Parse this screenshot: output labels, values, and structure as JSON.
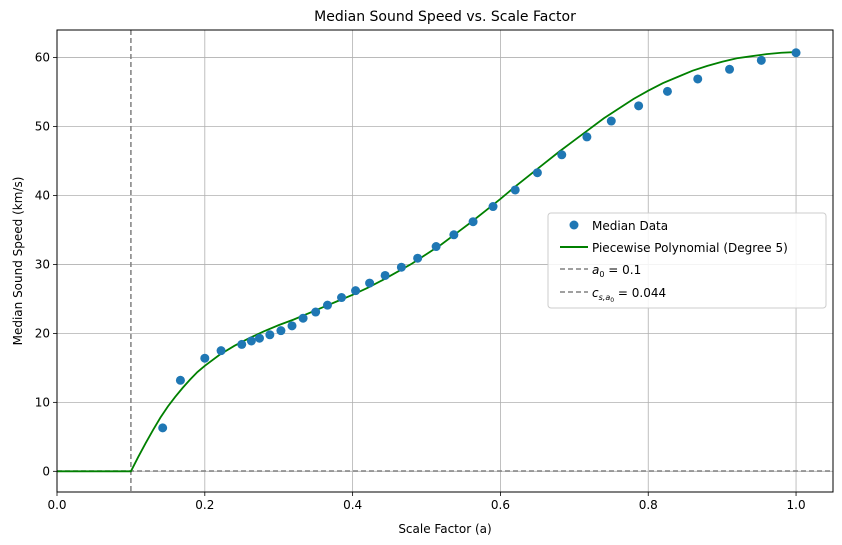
{
  "chart_data": {
    "type": "scatter",
    "title": "Median Sound Speed vs. Scale Factor",
    "xlabel": "Scale Factor (a)",
    "ylabel": "Median Sound Speed (km/s)",
    "xlim": [
      0.0,
      1.05
    ],
    "ylim": [
      -3.0,
      64.0
    ],
    "grid": true,
    "legend_position": "center-right",
    "x_ticks": [
      0.0,
      0.2,
      0.4,
      0.6,
      0.8,
      1.0
    ],
    "x_tick_labels": [
      "0.0",
      "0.2",
      "0.4",
      "0.6",
      "0.8",
      "1.0"
    ],
    "y_ticks": [
      0,
      10,
      20,
      30,
      40,
      50,
      60
    ],
    "y_tick_labels": [
      "0",
      "10",
      "20",
      "30",
      "40",
      "50",
      "60"
    ],
    "series": [
      {
        "name": "Median Data",
        "kind": "scatter",
        "color": "#1f77b4",
        "x": [
          0.143,
          0.167,
          0.2,
          0.222,
          0.25,
          0.263,
          0.274,
          0.288,
          0.303,
          0.318,
          0.333,
          0.35,
          0.366,
          0.385,
          0.404,
          0.423,
          0.444,
          0.466,
          0.488,
          0.513,
          0.537,
          0.563,
          0.59,
          0.62,
          0.65,
          0.683,
          0.717,
          0.75,
          0.787,
          0.826,
          0.867,
          0.91,
          0.953,
          1.0
        ],
        "y": [
          6.3,
          13.2,
          16.4,
          17.5,
          18.4,
          18.9,
          19.3,
          19.8,
          20.4,
          21.1,
          22.2,
          23.1,
          24.1,
          25.2,
          26.2,
          27.3,
          28.4,
          29.6,
          30.9,
          32.6,
          34.3,
          36.2,
          38.4,
          40.8,
          43.3,
          45.9,
          48.5,
          50.8,
          53.0,
          55.1,
          56.9,
          58.3,
          59.6,
          60.7
        ]
      },
      {
        "name": "Piecewise Polynomial (Degree 5)",
        "kind": "line",
        "color": "#008000",
        "x": [
          0.0,
          0.1,
          0.11,
          0.12,
          0.13,
          0.14,
          0.15,
          0.16,
          0.17,
          0.18,
          0.19,
          0.2,
          0.22,
          0.24,
          0.26,
          0.28,
          0.3,
          0.32,
          0.34,
          0.36,
          0.38,
          0.4,
          0.42,
          0.44,
          0.46,
          0.48,
          0.5,
          0.52,
          0.54,
          0.56,
          0.58,
          0.6,
          0.62,
          0.64,
          0.66,
          0.68,
          0.7,
          0.72,
          0.74,
          0.76,
          0.78,
          0.8,
          0.82,
          0.84,
          0.86,
          0.88,
          0.9,
          0.92,
          0.94,
          0.96,
          0.98,
          1.0
        ],
        "y": [
          0.0,
          0.0,
          2.1,
          4.1,
          6.0,
          7.8,
          9.4,
          10.8,
          12.1,
          13.3,
          14.4,
          15.3,
          16.9,
          18.2,
          19.3,
          20.3,
          21.2,
          22.0,
          22.9,
          23.8,
          24.7,
          25.6,
          26.6,
          27.7,
          28.9,
          30.1,
          31.5,
          32.9,
          34.5,
          36.1,
          37.8,
          39.5,
          41.3,
          43.0,
          44.7,
          46.4,
          48.0,
          49.6,
          51.2,
          52.6,
          54.0,
          55.2,
          56.3,
          57.2,
          58.1,
          58.8,
          59.4,
          59.9,
          60.2,
          60.5,
          60.7,
          60.8
        ]
      },
      {
        "name": "$a_0 = 0.1$",
        "label_main": "a",
        "label_sub": "0",
        "label_rest": " = 0.1",
        "kind": "vline",
        "color": "#808080",
        "x": 0.1
      },
      {
        "name": "$c_{s,a_0} = 0.044$",
        "label_main": "c",
        "label_sub": "s,a",
        "label_subsub": "0",
        "label_rest": " = 0.044",
        "kind": "hline",
        "color": "#808080",
        "y": 0.044
      }
    ]
  }
}
